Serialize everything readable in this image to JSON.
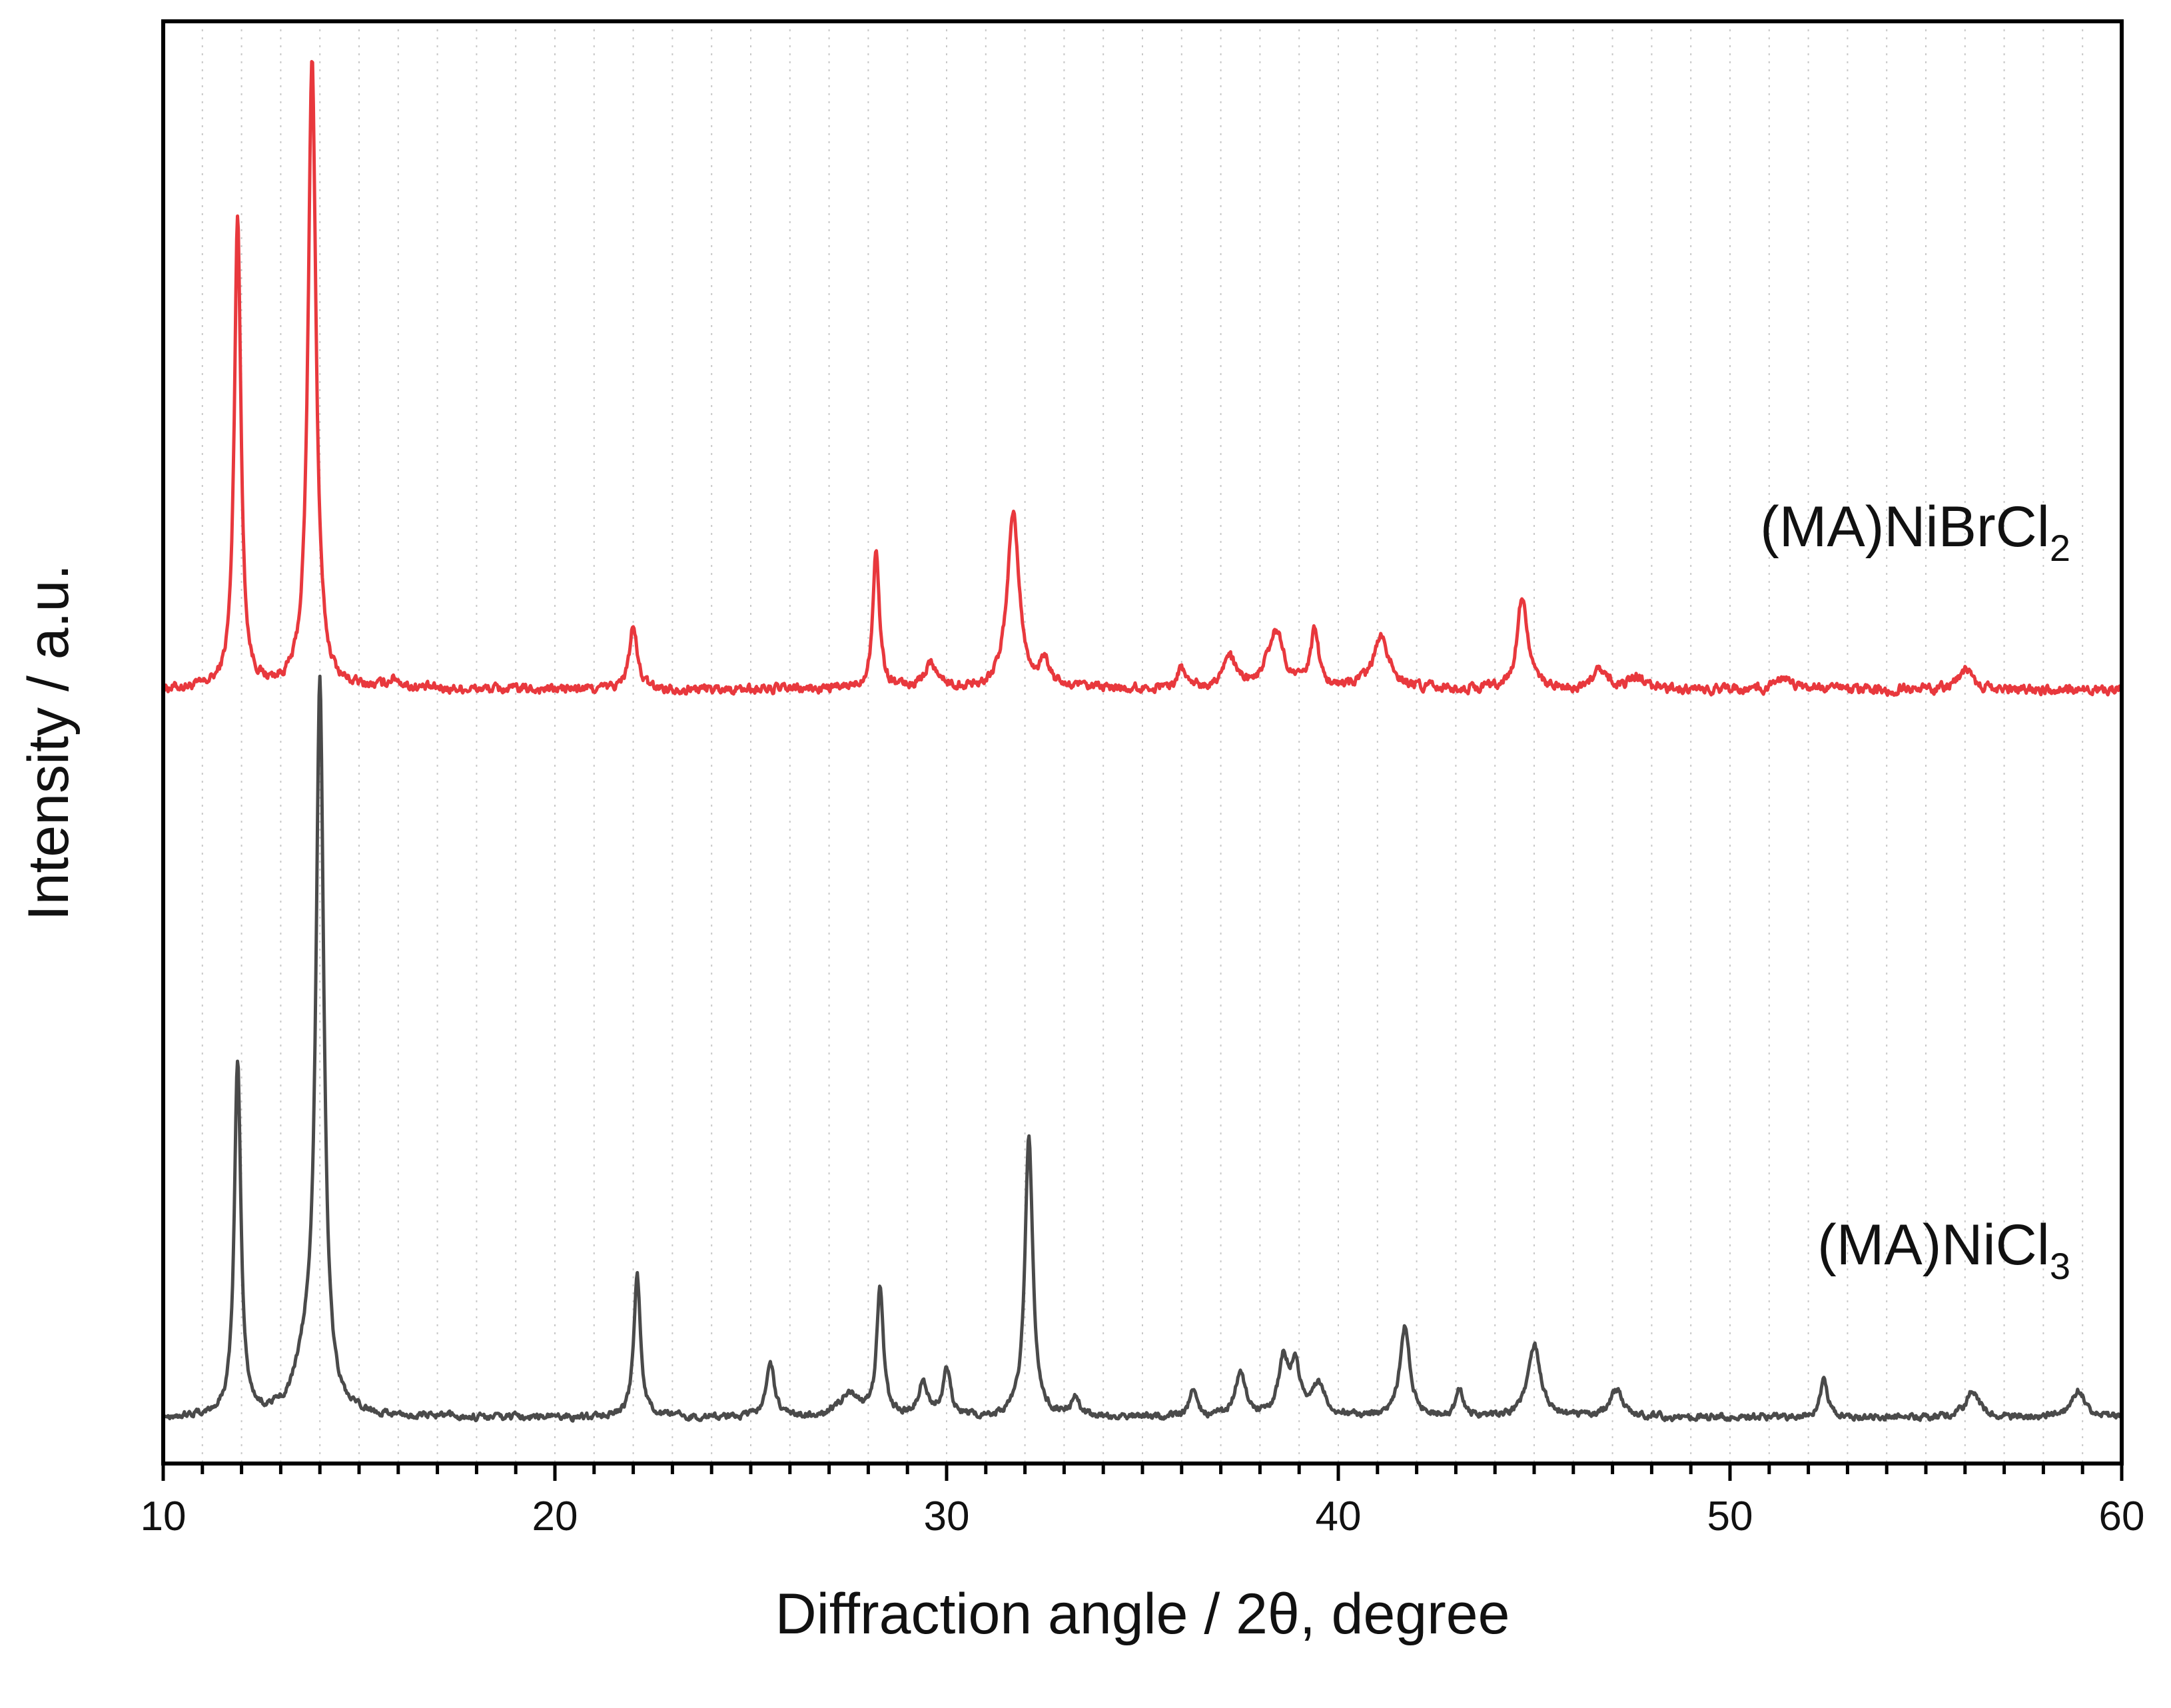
{
  "chart_data": {
    "type": "line",
    "title": "",
    "xlabel": "Diffraction angle / 2θ, degree",
    "ylabel": "Intensity / a.u.",
    "xlim": [
      10,
      60
    ],
    "x_ticks": [
      10,
      20,
      30,
      40,
      50,
      60
    ],
    "x_tick_labels": [
      "10",
      "20",
      "30",
      "40",
      "50",
      "60"
    ],
    "minor_tick_step": 1,
    "grid": "vertical dotted at minor ticks",
    "y_ticks": "none (arbitrary units)",
    "series": [
      {
        "name": "(MA)NiBrCl2",
        "label_main": "(MA)NiBrCl",
        "label_sub": "2",
        "color": "#e8383d",
        "baseline": 0.0,
        "noise_amplitude": 0.012,
        "peaks": [
          {
            "x": 11.9,
            "y": 0.75,
            "w": 0.1
          },
          {
            "x": 13.8,
            "y": 1.0,
            "w": 0.12
          },
          {
            "x": 15.9,
            "y": 0.015,
            "w": 0.2
          },
          {
            "x": 22.0,
            "y": 0.1,
            "w": 0.12
          },
          {
            "x": 28.2,
            "y": 0.22,
            "w": 0.1
          },
          {
            "x": 29.6,
            "y": 0.04,
            "w": 0.2
          },
          {
            "x": 31.7,
            "y": 0.28,
            "w": 0.18
          },
          {
            "x": 32.5,
            "y": 0.04,
            "w": 0.15
          },
          {
            "x": 36.0,
            "y": 0.03,
            "w": 0.15
          },
          {
            "x": 37.2,
            "y": 0.05,
            "w": 0.2
          },
          {
            "x": 38.4,
            "y": 0.09,
            "w": 0.25
          },
          {
            "x": 39.4,
            "y": 0.09,
            "w": 0.12
          },
          {
            "x": 41.1,
            "y": 0.08,
            "w": 0.25
          },
          {
            "x": 44.7,
            "y": 0.15,
            "w": 0.15
          },
          {
            "x": 46.7,
            "y": 0.03,
            "w": 0.2
          },
          {
            "x": 47.6,
            "y": 0.02,
            "w": 0.2
          },
          {
            "x": 51.4,
            "y": 0.02,
            "w": 0.2
          },
          {
            "x": 56.0,
            "y": 0.03,
            "w": 0.2
          }
        ]
      },
      {
        "name": "(MA)NiCl3",
        "label_main": "(MA)NiCl",
        "label_sub": "3",
        "color": "#4a4a4a",
        "baseline": 0.0,
        "noise_amplitude": 0.012,
        "peaks": [
          {
            "x": 11.9,
            "y": 0.78,
            "w": 0.1
          },
          {
            "x": 14.0,
            "y": 1.6,
            "w": 0.12
          },
          {
            "x": 13.6,
            "y": 0.1,
            "w": 0.3
          },
          {
            "x": 22.1,
            "y": 0.32,
            "w": 0.1
          },
          {
            "x": 25.5,
            "y": 0.12,
            "w": 0.12
          },
          {
            "x": 27.5,
            "y": 0.05,
            "w": 0.3
          },
          {
            "x": 28.3,
            "y": 0.28,
            "w": 0.1
          },
          {
            "x": 29.4,
            "y": 0.07,
            "w": 0.15
          },
          {
            "x": 30.0,
            "y": 0.1,
            "w": 0.12
          },
          {
            "x": 32.1,
            "y": 0.62,
            "w": 0.12
          },
          {
            "x": 33.3,
            "y": 0.04,
            "w": 0.12
          },
          {
            "x": 36.3,
            "y": 0.06,
            "w": 0.12
          },
          {
            "x": 37.5,
            "y": 0.1,
            "w": 0.15
          },
          {
            "x": 38.6,
            "y": 0.12,
            "w": 0.15
          },
          {
            "x": 38.9,
            "y": 0.1,
            "w": 0.15
          },
          {
            "x": 39.5,
            "y": 0.07,
            "w": 0.2
          },
          {
            "x": 41.7,
            "y": 0.2,
            "w": 0.15
          },
          {
            "x": 43.1,
            "y": 0.06,
            "w": 0.12
          },
          {
            "x": 45.0,
            "y": 0.16,
            "w": 0.2
          },
          {
            "x": 47.1,
            "y": 0.06,
            "w": 0.2
          },
          {
            "x": 52.4,
            "y": 0.08,
            "w": 0.12
          },
          {
            "x": 56.2,
            "y": 0.06,
            "w": 0.2
          },
          {
            "x": 58.9,
            "y": 0.06,
            "w": 0.2
          }
        ]
      }
    ]
  }
}
